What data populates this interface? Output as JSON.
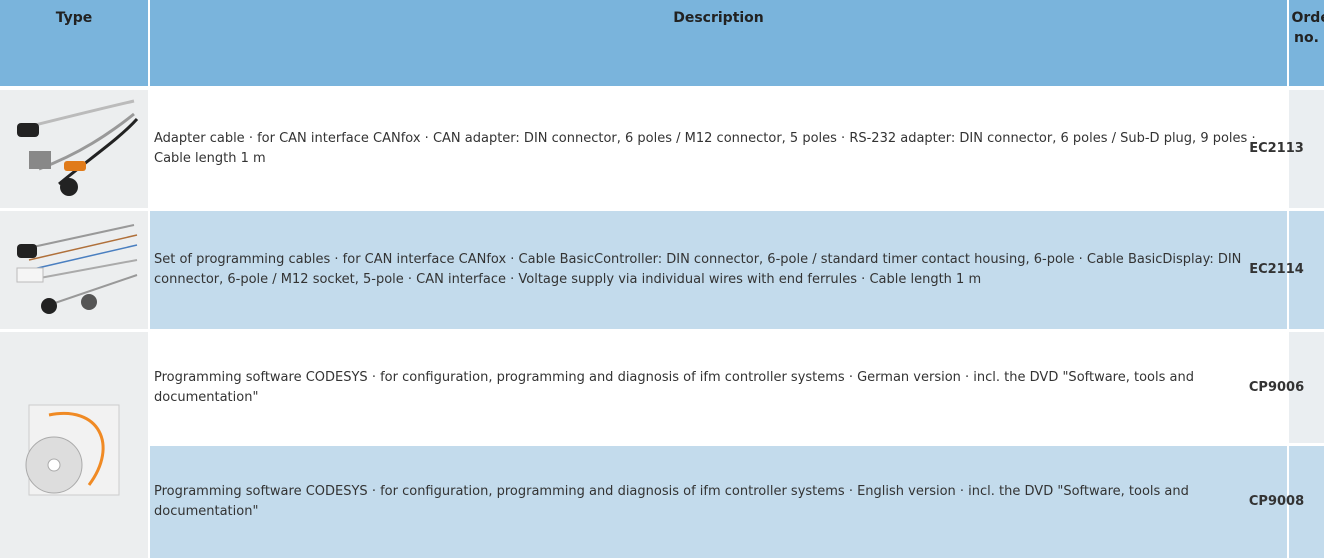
{
  "header": {
    "columns": [
      "Type",
      "Description",
      "Order no."
    ]
  },
  "rows": [
    {
      "description": "Adapter cable · for CAN interface CANfox · CAN adapter: DIN connector, 6 poles / M12 connector, 5 poles · RS-232 adapter: DIN connector, 6 poles / Sub-D plug, 9 poles · Cable length 1 m",
      "order_no": "EC2113"
    },
    {
      "description": "Set of programming cables · for CAN interface CANfox · Cable BasicController: DIN connector, 6-pole / standard timer contact housing, 6-pole · Cable BasicDisplay: DIN connector, 6-pole / M12 socket, 5-pole · CAN interface · Voltage supply via individual wires with end ferrules · Cable length 1 m",
      "order_no": "EC2114"
    },
    {
      "description": "Programming software CODESYS · for configuration, programming and diagnosis of ifm controller systems · German version · incl. the DVD \"Software, tools and documentation\"",
      "order_no": "CP9006"
    },
    {
      "description": "Programming software CODESYS · for configuration, programming and diagnosis of ifm controller systems · English version · incl. the DVD \"Software, tools and documentation\"",
      "order_no": "CP9008"
    }
  ]
}
